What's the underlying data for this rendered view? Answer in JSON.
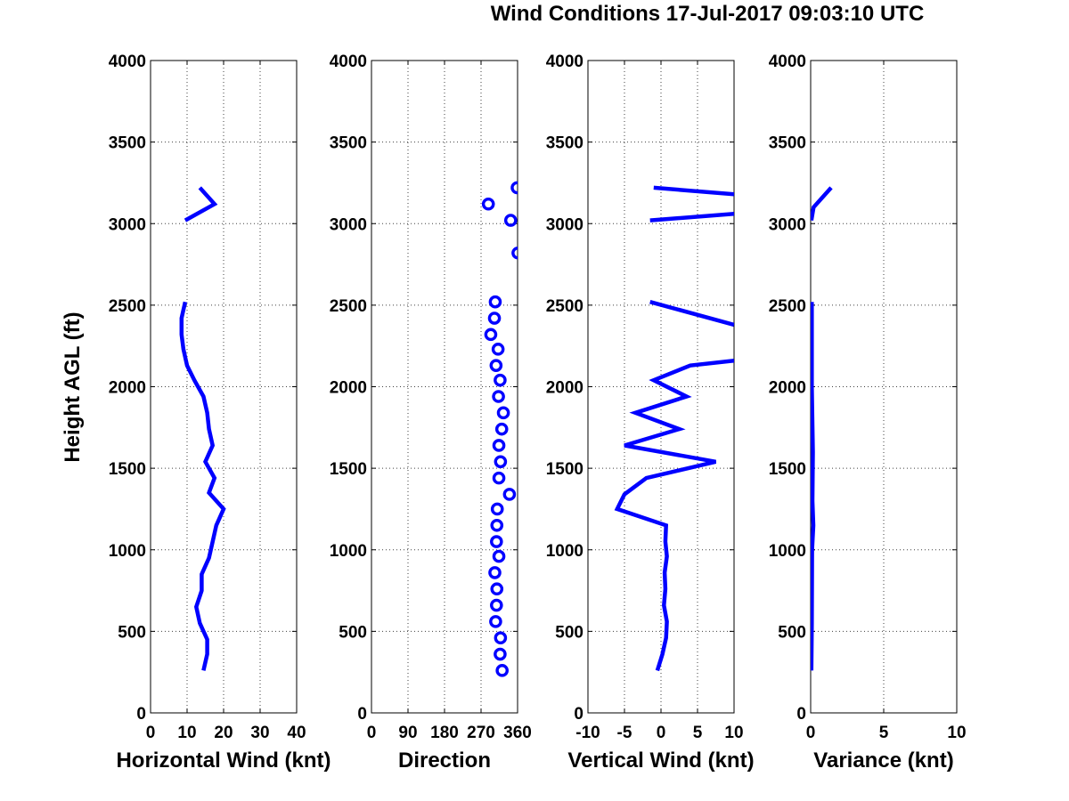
{
  "chart_data": {
    "type": "line",
    "title": "Wind Conditions 17-Jul-2017 09:03:10 UTC",
    "ylabel": "Height AGL (ft)",
    "ylim": [
      0,
      4000
    ],
    "yticks": [
      "0",
      "500",
      "1000",
      "1500",
      "2000",
      "2500",
      "3000",
      "3500",
      "4000"
    ],
    "series_color": "#0000ff",
    "grid": true,
    "panels": [
      {
        "id": "horizontal-wind",
        "type": "line",
        "xlabel": "Horizontal Wind (knt)",
        "xlim": [
          0,
          40
        ],
        "xtick_values": [
          0,
          10,
          20,
          30,
          40
        ],
        "xtick_labels": [
          "0",
          "10",
          "20",
          "30",
          "40"
        ],
        "segments": [
          [
            [
              14.5,
              260
            ],
            [
              15.5,
              360
            ],
            [
              15.5,
              450
            ],
            [
              13.5,
              550
            ],
            [
              12.5,
              650
            ],
            [
              14,
              750
            ],
            [
              14,
              850
            ],
            [
              16,
              950
            ],
            [
              17,
              1050
            ],
            [
              18,
              1150
            ],
            [
              20,
              1250
            ],
            [
              16,
              1350
            ],
            [
              17.5,
              1440
            ],
            [
              15,
              1540
            ],
            [
              17,
              1640
            ],
            [
              16,
              1740
            ],
            [
              15.5,
              1840
            ],
            [
              14.5,
              1940
            ],
            [
              12,
              2040
            ],
            [
              10,
              2130
            ],
            [
              9,
              2230
            ],
            [
              8.5,
              2320
            ],
            [
              8.5,
              2420
            ],
            [
              9.5,
              2520
            ]
          ],
          [
            [
              9.5,
              3020
            ],
            [
              17.5,
              3120
            ],
            [
              13.5,
              3220
            ]
          ]
        ]
      },
      {
        "id": "direction",
        "type": "scatter",
        "xlabel": "Direction",
        "xlim": [
          0,
          360
        ],
        "xtick_values": [
          0,
          90,
          180,
          270,
          360
        ],
        "xtick_labels": [
          "0",
          "90",
          "180",
          "270",
          "360"
        ],
        "points": [
          [
            322,
            260
          ],
          [
            317,
            360
          ],
          [
            318,
            460
          ],
          [
            306,
            560
          ],
          [
            308,
            660
          ],
          [
            309,
            760
          ],
          [
            304,
            860
          ],
          [
            314,
            960
          ],
          [
            308,
            1050
          ],
          [
            309,
            1150
          ],
          [
            310,
            1250
          ],
          [
            340,
            1340
          ],
          [
            314,
            1440
          ],
          [
            318,
            1540
          ],
          [
            314,
            1640
          ],
          [
            321,
            1740
          ],
          [
            325,
            1840
          ],
          [
            313,
            1940
          ],
          [
            317,
            2040
          ],
          [
            307,
            2130
          ],
          [
            312,
            2230
          ],
          [
            294,
            2320
          ],
          [
            303,
            2420
          ],
          [
            305,
            2520
          ],
          [
            361,
            2820
          ],
          [
            343,
            3020
          ],
          [
            288,
            3120
          ],
          [
            359,
            3220
          ]
        ]
      },
      {
        "id": "vertical-wind",
        "type": "line",
        "xlabel": "Vertical Wind (knt)",
        "xlim": [
          -10,
          10
        ],
        "xtick_values": [
          -10,
          -5,
          0,
          5,
          10
        ],
        "xtick_labels": [
          "-10",
          "-5",
          "0",
          "5",
          "10"
        ],
        "segments": [
          [
            [
              -0.5,
              260
            ],
            [
              0.2,
              360
            ],
            [
              0.7,
              460
            ],
            [
              0.8,
              560
            ],
            [
              0.4,
              660
            ],
            [
              0.6,
              760
            ],
            [
              0.5,
              860
            ],
            [
              0.8,
              960
            ],
            [
              0.6,
              1050
            ],
            [
              0.7,
              1150
            ],
            [
              -6,
              1250
            ],
            [
              -5,
              1340
            ],
            [
              -2,
              1440
            ],
            [
              7.5,
              1540
            ],
            [
              -5,
              1640
            ],
            [
              2.5,
              1740
            ],
            [
              -3.5,
              1840
            ],
            [
              3.5,
              1940
            ],
            [
              -1,
              2040
            ],
            [
              4,
              2130
            ],
            [
              10,
              2160
            ]
          ],
          [
            [
              10,
              2380
            ],
            [
              -1.5,
              2520
            ]
          ],
          [
            [
              -1.5,
              3020
            ],
            [
              10,
              3060
            ]
          ],
          [
            [
              10,
              3180
            ],
            [
              -1,
              3220
            ]
          ]
        ]
      },
      {
        "id": "variance",
        "type": "line",
        "xlabel": "Variance (knt)",
        "xlim": [
          0,
          10
        ],
        "xtick_values": [
          0,
          5,
          10
        ],
        "xtick_labels": [
          "0",
          "5",
          "10"
        ],
        "segments": [
          [
            [
              0.05,
              260
            ],
            [
              0.08,
              550
            ],
            [
              0.1,
              1000
            ],
            [
              0.18,
              1150
            ],
            [
              0.12,
              1300
            ],
            [
              0.15,
              1600
            ],
            [
              0.08,
              2000
            ],
            [
              0.08,
              2520
            ]
          ],
          [
            [
              0.05,
              3020
            ],
            [
              0.2,
              3100
            ],
            [
              1.4,
              3220
            ]
          ]
        ]
      }
    ]
  }
}
